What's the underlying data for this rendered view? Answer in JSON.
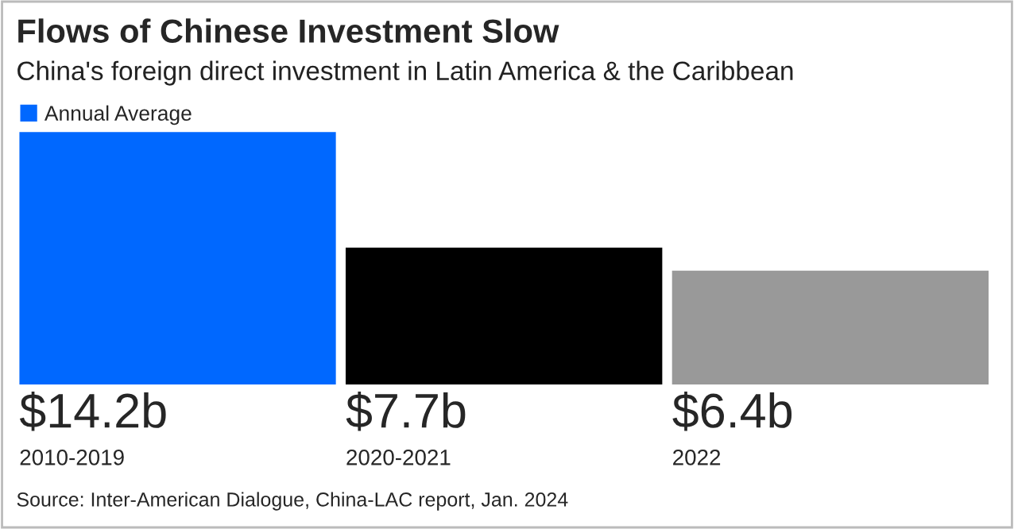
{
  "chart_data": {
    "type": "bar",
    "title": "Flows of Chinese Investment Slow",
    "subtitle": "China's foreign direct investment in Latin America & the Caribbean",
    "categories": [
      "2010-2019",
      "2020-2021",
      "2022"
    ],
    "series": [
      {
        "name": "Annual Average",
        "colors": [
          "#0068ff",
          "#000000",
          "#999999"
        ],
        "values": [
          14.2,
          7.7,
          6.4
        ],
        "value_labels": [
          "$14.2b",
          "$7.7b",
          "$6.4b"
        ]
      }
    ],
    "legend": "top left",
    "annotations": [
      "Source: Inter-American Dialogue, China-LAC report, Jan. 2024"
    ]
  }
}
